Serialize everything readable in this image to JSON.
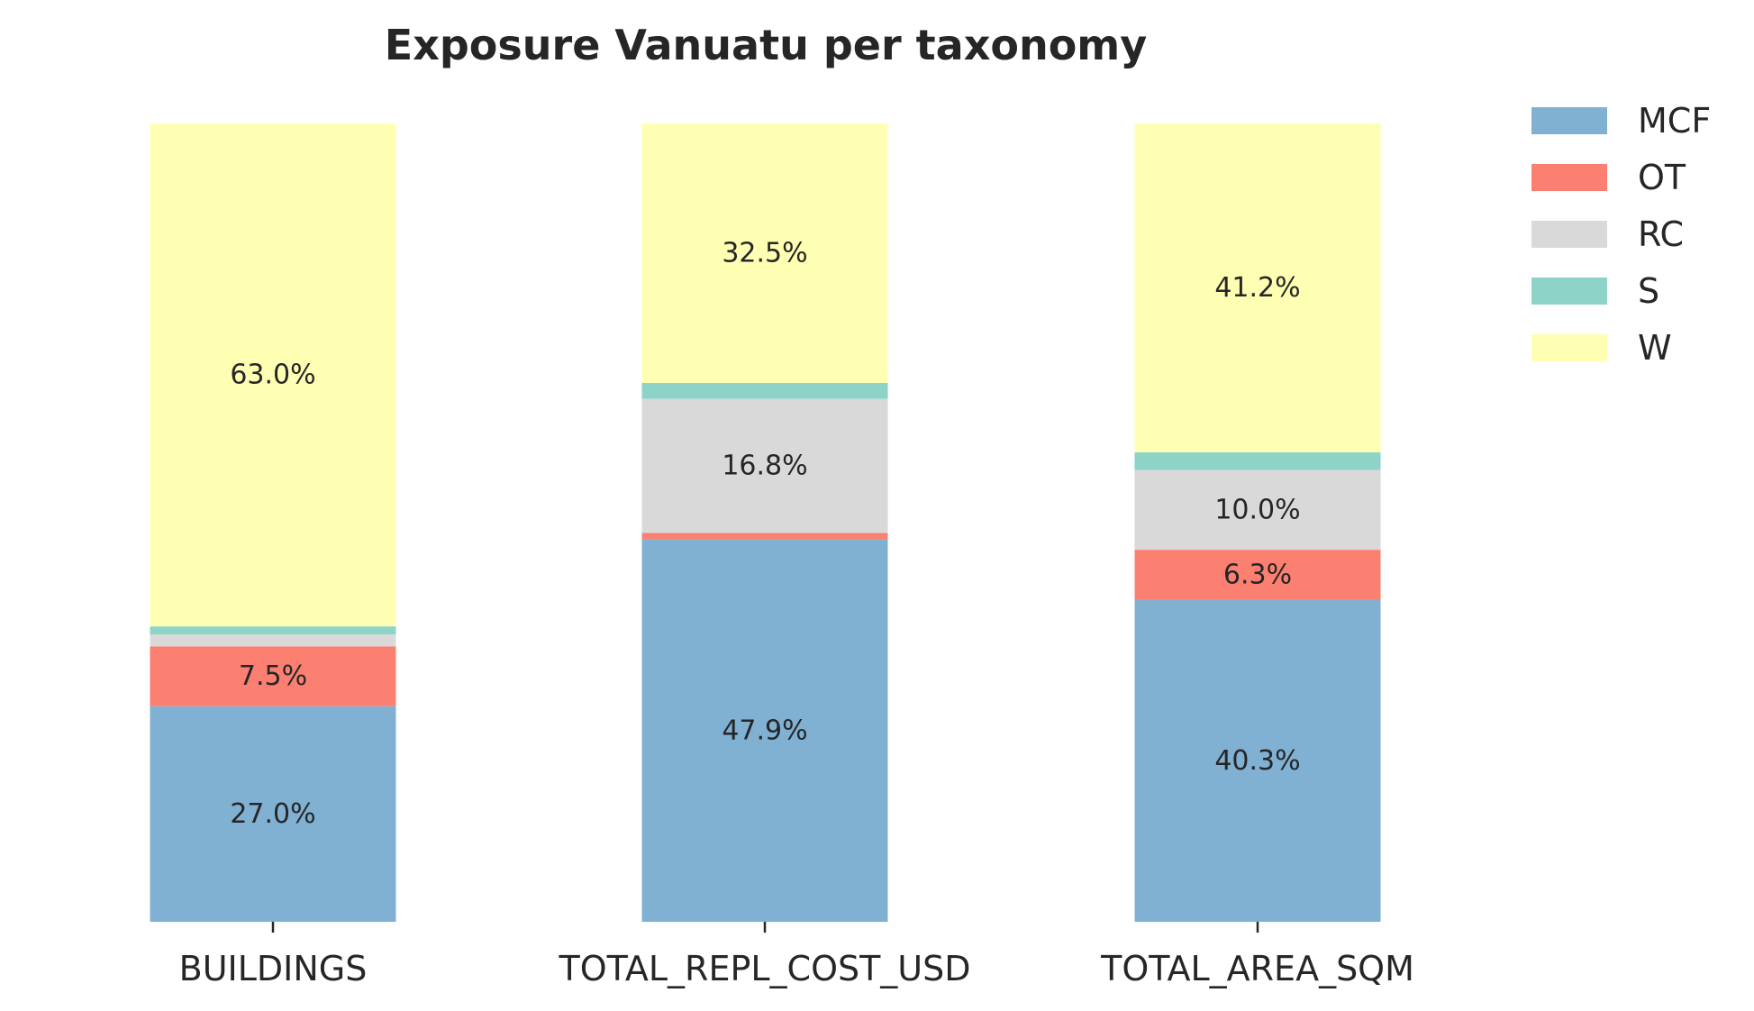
{
  "chart_data": {
    "type": "bar",
    "stacked": true,
    "title": "Exposure Vanuatu per taxonomy",
    "xlabel": "",
    "ylabel": "",
    "ylim": [
      0,
      100
    ],
    "grid": false,
    "legend_position": "top-right",
    "categories": [
      "BUILDINGS",
      "TOTAL_REPL_COST_USD",
      "TOTAL_AREA_SQM"
    ],
    "series": [
      {
        "name": "MCF",
        "color": "#80b1d3",
        "values": [
          27.0,
          47.9,
          40.3
        ],
        "labels": [
          "27.0%",
          "47.9%",
          "40.3%"
        ]
      },
      {
        "name": "OT",
        "color": "#fb8072",
        "values": [
          7.5,
          0.8,
          6.3
        ],
        "labels": [
          "7.5%",
          "",
          "6.3%"
        ]
      },
      {
        "name": "RC",
        "color": "#d9d9d9",
        "values": [
          1.5,
          16.8,
          10.0
        ],
        "labels": [
          "",
          "16.8%",
          "10.0%"
        ]
      },
      {
        "name": "S",
        "color": "#8dd3c7",
        "values": [
          1.0,
          2.0,
          2.2
        ],
        "labels": [
          "",
          "",
          ""
        ]
      },
      {
        "name": "W",
        "color": "#ffffb3",
        "values": [
          63.0,
          32.5,
          41.2
        ],
        "labels": [
          "63.0%",
          "32.5%",
          "41.2%"
        ]
      }
    ]
  }
}
